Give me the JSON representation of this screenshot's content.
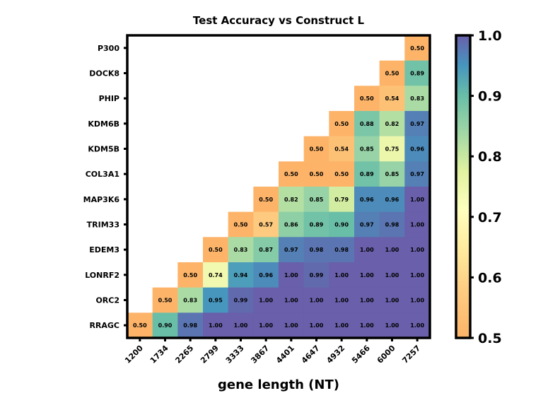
{
  "chart_data": {
    "type": "heatmap",
    "title": "Test Accuracy vs Construct L",
    "xlabel": "gene length (NT)",
    "ylabel": "",
    "x_categories": [
      "1200",
      "1734",
      "2265",
      "2799",
      "3333",
      "3867",
      "4401",
      "4647",
      "4932",
      "5466",
      "6000",
      "7257"
    ],
    "y_categories": [
      "P300",
      "DOCK8",
      "PHIP",
      "KDM6B",
      "KDM5B",
      "COL3A1",
      "MAP3K6",
      "TRIM33",
      "EDEM3",
      "LONRF2",
      "ORC2",
      "RRAGC"
    ],
    "values": [
      [
        null,
        null,
        null,
        null,
        null,
        null,
        null,
        null,
        null,
        null,
        null,
        0.5
      ],
      [
        null,
        null,
        null,
        null,
        null,
        null,
        null,
        null,
        null,
        null,
        0.5,
        0.89
      ],
      [
        null,
        null,
        null,
        null,
        null,
        null,
        null,
        null,
        null,
        0.5,
        0.54,
        0.83
      ],
      [
        null,
        null,
        null,
        null,
        null,
        null,
        null,
        null,
        0.5,
        0.88,
        0.82,
        0.97
      ],
      [
        null,
        null,
        null,
        null,
        null,
        null,
        null,
        0.5,
        0.54,
        0.85,
        0.75,
        0.96
      ],
      [
        null,
        null,
        null,
        null,
        null,
        null,
        0.5,
        0.5,
        0.5,
        0.89,
        0.85,
        0.97
      ],
      [
        null,
        null,
        null,
        null,
        null,
        0.5,
        0.82,
        0.85,
        0.79,
        0.96,
        0.96,
        1.0
      ],
      [
        null,
        null,
        null,
        null,
        0.5,
        0.57,
        0.86,
        0.89,
        0.9,
        0.97,
        0.98,
        1.0
      ],
      [
        null,
        null,
        null,
        0.5,
        0.83,
        0.87,
        0.97,
        0.98,
        0.98,
        1.0,
        1.0,
        1.0
      ],
      [
        null,
        null,
        0.5,
        0.74,
        0.94,
        0.96,
        1.0,
        0.99,
        1.0,
        1.0,
        1.0,
        1.0
      ],
      [
        null,
        0.5,
        0.83,
        0.95,
        0.99,
        1.0,
        1.0,
        1.0,
        1.0,
        1.0,
        1.0,
        1.0
      ],
      [
        0.5,
        0.9,
        0.98,
        1.0,
        1.0,
        1.0,
        1.0,
        1.0,
        1.0,
        1.0,
        1.0,
        1.0
      ]
    ],
    "colorbar": {
      "range": [
        0.5,
        1.0
      ],
      "ticks": [
        "0.5",
        "0.6",
        "0.7",
        "0.8",
        "0.9",
        "1.0"
      ],
      "colormap": "Spectral"
    }
  }
}
